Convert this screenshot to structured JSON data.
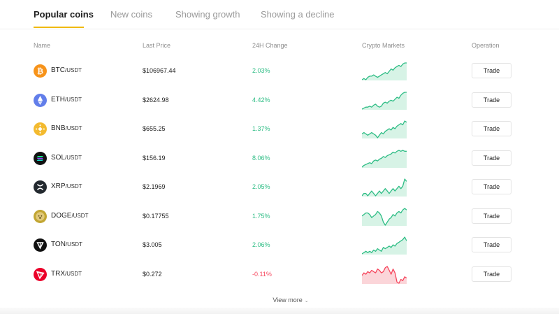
{
  "tabs": [
    {
      "label": "Popular coins",
      "active": true
    },
    {
      "label": "New coins",
      "active": false
    },
    {
      "label": "Showing growth",
      "active": false
    },
    {
      "label": "Showing a decline",
      "active": false
    }
  ],
  "columns": {
    "name": "Name",
    "last_price": "Last Price",
    "change_24h": "24H Change",
    "markets": "Crypto Markets",
    "operation": "Operation"
  },
  "colors": {
    "accent": "#f0b90b",
    "positive": "#2ebd85",
    "negative": "#f6465d",
    "positive_fill": "#d7f3e6",
    "negative_fill": "#fbd5d9"
  },
  "rows": [
    {
      "symbol": "BTC",
      "quote": "/USDT",
      "price": "$106967.44",
      "change": "2.03%",
      "direction": "up",
      "icon": "btc-icon",
      "icon_color": "#f7931a",
      "trend": [
        5,
        6,
        5,
        7,
        8,
        8,
        9,
        8,
        7,
        8,
        9,
        10,
        11,
        10,
        12,
        14,
        13,
        15,
        16,
        17,
        16,
        18,
        19,
        19
      ]
    },
    {
      "symbol": "ETH",
      "quote": "/USDT",
      "price": "$2624.98",
      "change": "4.42%",
      "direction": "up",
      "icon": "eth-icon",
      "icon_color": "#627eea",
      "trend": [
        3,
        4,
        5,
        5,
        6,
        5,
        7,
        8,
        6,
        5,
        6,
        9,
        10,
        9,
        11,
        12,
        11,
        13,
        15,
        14,
        17,
        19,
        20,
        20
      ]
    },
    {
      "symbol": "BNB",
      "quote": "/USDT",
      "price": "$655.25",
      "change": "1.37%",
      "direction": "up",
      "icon": "bnb-icon",
      "icon_color": "#f3ba2f",
      "trend": [
        9,
        10,
        9,
        8,
        9,
        10,
        9,
        8,
        6,
        8,
        10,
        9,
        11,
        12,
        13,
        12,
        14,
        13,
        15,
        16,
        17,
        16,
        19,
        18
      ]
    },
    {
      "symbol": "SOL",
      "quote": "/USDT",
      "price": "$156.19",
      "change": "8.06%",
      "direction": "up",
      "icon": "sol-icon",
      "icon_color": "#111111",
      "trend": [
        2,
        4,
        5,
        6,
        7,
        6,
        9,
        10,
        9,
        11,
        12,
        14,
        13,
        15,
        16,
        17,
        19,
        18,
        20,
        21,
        20,
        21,
        20,
        20
      ]
    },
    {
      "symbol": "XRP",
      "quote": "/USDT",
      "price": "$2.1969",
      "change": "2.05%",
      "direction": "up",
      "icon": "xrp-icon",
      "icon_color": "#23292f",
      "trend": [
        10,
        11,
        11,
        10,
        11,
        12,
        11,
        10,
        11,
        12,
        11,
        12,
        13,
        12,
        11,
        12,
        13,
        12,
        13,
        14,
        13,
        14,
        17,
        16
      ]
    },
    {
      "symbol": "DOGE",
      "quote": "/USDT",
      "price": "$0.17755",
      "change": "1.75%",
      "direction": "up",
      "icon": "doge-icon",
      "icon_color": "#c2a633",
      "trend": [
        13,
        14,
        15,
        15,
        14,
        12,
        13,
        14,
        16,
        15,
        13,
        9,
        7,
        9,
        11,
        12,
        14,
        13,
        15,
        16,
        15,
        17,
        18,
        17
      ]
    },
    {
      "symbol": "TON",
      "quote": "/USDT",
      "price": "$3.005",
      "change": "2.06%",
      "direction": "up",
      "icon": "ton-icon",
      "icon_color": "#111111",
      "trend": [
        7,
        8,
        9,
        8,
        9,
        8,
        10,
        9,
        11,
        10,
        9,
        12,
        11,
        12,
        13,
        12,
        14,
        13,
        15,
        16,
        17,
        18,
        20,
        17
      ]
    },
    {
      "symbol": "TRX",
      "quote": "/USDT",
      "price": "$0.272",
      "change": "-0.11%",
      "direction": "down",
      "icon": "trx-icon",
      "icon_color": "#eb0029",
      "trend": [
        10,
        12,
        11,
        13,
        12,
        14,
        13,
        12,
        15,
        14,
        12,
        13,
        16,
        17,
        14,
        11,
        15,
        12,
        5,
        4,
        7,
        6,
        9,
        8
      ]
    }
  ],
  "row_button": "Trade",
  "view_more": "View more"
}
